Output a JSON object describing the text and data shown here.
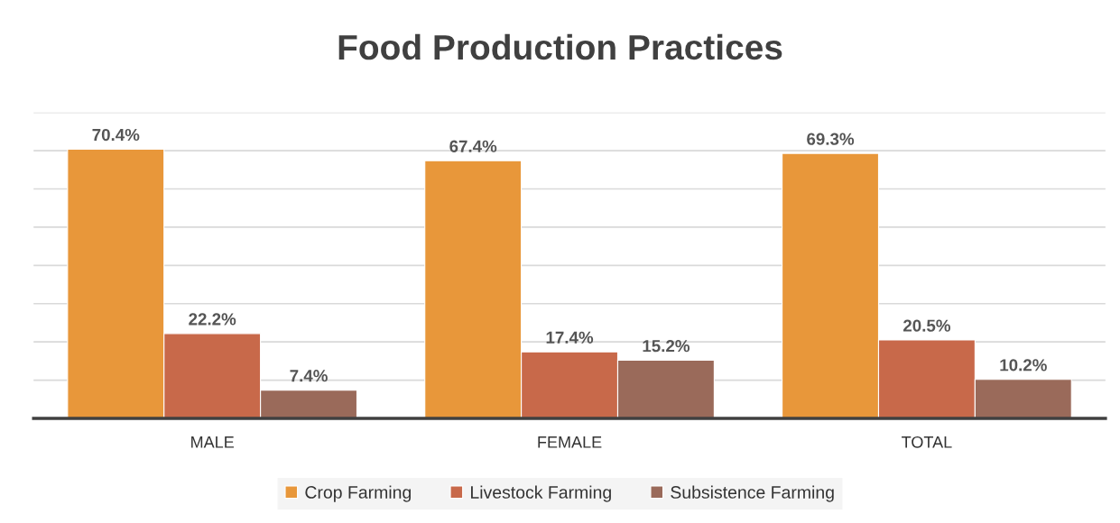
{
  "chart_data": {
    "type": "bar",
    "title": "Food Production Practices",
    "categories": [
      "MALE",
      "FEMALE",
      "TOTAL"
    ],
    "series": [
      {
        "name": "Crop Farming",
        "color": "#e8973a",
        "values": [
          70.4,
          67.4,
          69.3
        ],
        "value_labels": [
          "70.4%",
          "67.4%",
          "69.3%"
        ]
      },
      {
        "name": "Livestock Farming",
        "color": "#c8694a",
        "values": [
          22.2,
          17.4,
          20.5
        ],
        "value_labels": [
          "22.2%",
          "17.4%",
          "20.5%"
        ]
      },
      {
        "name": "Subsistence Farming",
        "color": "#9a6a5a",
        "values": [
          7.4,
          15.2,
          10.2
        ],
        "value_labels": [
          "7.4%",
          "15.2%",
          "10.2%"
        ]
      }
    ],
    "ylim": [
      0,
      80
    ],
    "yticks": [
      {
        "value": 0,
        "label": null
      },
      {
        "value": 10,
        "label": null
      },
      {
        "value": 20,
        "label": null
      },
      {
        "value": 30,
        "label": null
      },
      {
        "value": 40,
        "label": null
      },
      {
        "value": 50,
        "label": null
      },
      {
        "value": 60,
        "label": null
      },
      {
        "value": 70,
        "label": null
      },
      {
        "value": 80,
        "label": null
      }
    ],
    "tick_labels": "x",
    "grid": "y",
    "legend": "bottom"
  }
}
